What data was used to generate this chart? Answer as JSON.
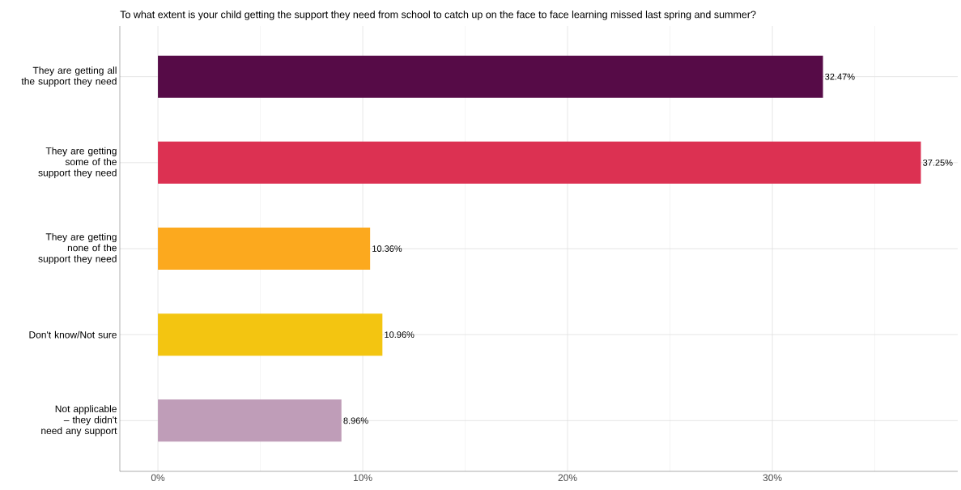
{
  "chart_data": {
    "type": "bar",
    "orientation": "horizontal",
    "title": "To what extent is your child getting the support they need from school to catch up on the face to face learning missed last spring and summer?",
    "categories": [
      "They are getting all the support they need",
      "They are getting some of the support they need",
      "They are getting none of the support they need",
      "Don't know/Not sure",
      "Not applicable – they didn't need any support"
    ],
    "values": [
      32.47,
      37.25,
      10.36,
      10.96,
      8.96
    ],
    "colors": [
      "#560b47",
      "#dc3152",
      "#fca91e",
      "#f3c511",
      "#bf9db8"
    ],
    "value_labels": [
      "32.47%",
      "37.25%",
      "10.36%",
      "10.96%",
      "8.96%"
    ],
    "xlim": [
      -1.86,
      39.05
    ],
    "xticks": [
      {
        "value": 0,
        "label": "0%"
      },
      {
        "value": 5,
        "label": null
      },
      {
        "value": 10,
        "label": "10%"
      },
      {
        "value": 15,
        "label": null
      },
      {
        "value": 20,
        "label": "20%"
      },
      {
        "value": 25,
        "label": null
      },
      {
        "value": 30,
        "label": "30%"
      },
      {
        "value": 35,
        "label": null
      }
    ],
    "grid": true
  }
}
